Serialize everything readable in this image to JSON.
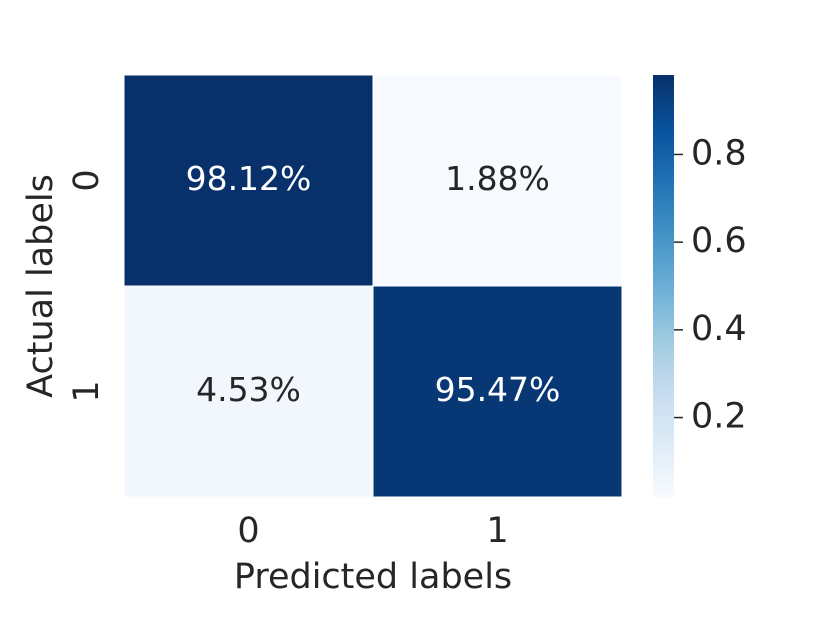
{
  "chart_data": {
    "type": "heatmap",
    "x_label": "Predicted labels",
    "y_label": "Actual labels",
    "x_categories": [
      "0",
      "1"
    ],
    "y_categories": [
      "0",
      "1"
    ],
    "values": [
      [
        0.9812,
        0.0188
      ],
      [
        0.0453,
        0.9547
      ]
    ],
    "value_labels": [
      [
        "98.12%",
        "1.88%"
      ],
      [
        "4.53%",
        "95.47%"
      ]
    ],
    "colormap": [
      "#f7fbff",
      "#deebf7",
      "#c6dbef",
      "#9ecae1",
      "#6baed6",
      "#4292c6",
      "#2171b5",
      "#08519c",
      "#08306b"
    ],
    "clim": [
      0.0188,
      0.9812
    ],
    "cticks": [
      0.2,
      0.4,
      0.6,
      0.8
    ]
  }
}
